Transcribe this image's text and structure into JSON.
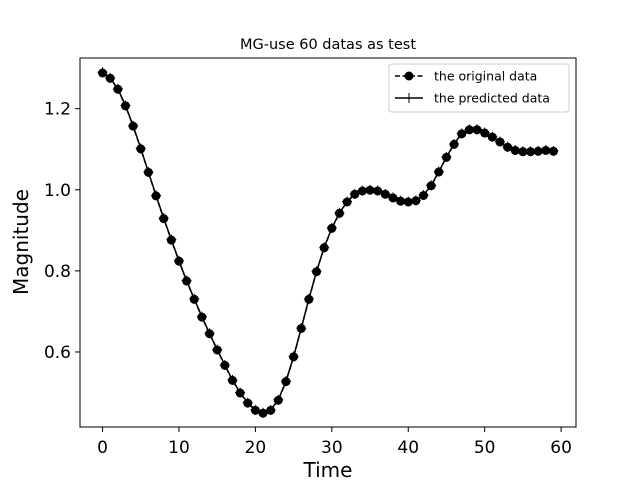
{
  "chart_data": {
    "type": "line",
    "title": "MG-use 60 datas as test",
    "xlabel": "Time",
    "ylabel": "Magnitude",
    "xlim": [
      -2.95,
      61.95
    ],
    "ylim": [
      0.415,
      1.325
    ],
    "xticks": [
      0,
      10,
      20,
      30,
      40,
      50,
      60
    ],
    "xtick_labels": [
      "0",
      "10",
      "20",
      "30",
      "40",
      "50",
      "60"
    ],
    "yticks": [
      0.6,
      0.8,
      1.0,
      1.2
    ],
    "ytick_labels": [
      "0.6",
      "0.8",
      "1.0",
      "1.2"
    ],
    "grid": false,
    "legend_position": "top-right",
    "x": [
      0,
      1,
      2,
      3,
      4,
      5,
      6,
      7,
      8,
      9,
      10,
      11,
      12,
      13,
      14,
      15,
      16,
      17,
      18,
      19,
      20,
      21,
      22,
      23,
      24,
      25,
      26,
      27,
      28,
      29,
      30,
      31,
      32,
      33,
      34,
      35,
      36,
      37,
      38,
      39,
      40,
      41,
      42,
      43,
      44,
      45,
      46,
      47,
      48,
      49,
      50,
      51,
      52,
      53,
      54,
      55,
      56,
      57,
      58,
      59
    ],
    "series": [
      {
        "name": "the original data",
        "style": "dashed-circle",
        "color": "#000000",
        "values": [
          1.288,
          1.275,
          1.248,
          1.207,
          1.157,
          1.101,
          1.043,
          0.985,
          0.929,
          0.876,
          0.824,
          0.775,
          0.73,
          0.686,
          0.645,
          0.605,
          0.567,
          0.53,
          0.499,
          0.474,
          0.456,
          0.449,
          0.456,
          0.481,
          0.527,
          0.588,
          0.658,
          0.73,
          0.798,
          0.857,
          0.905,
          0.942,
          0.97,
          0.989,
          0.997,
          0.999,
          0.997,
          0.989,
          0.98,
          0.972,
          0.97,
          0.973,
          0.986,
          1.01,
          1.044,
          1.08,
          1.112,
          1.138,
          1.148,
          1.148,
          1.14,
          1.13,
          1.118,
          1.105,
          1.097,
          1.094,
          1.094,
          1.095,
          1.097,
          1.095
        ]
      },
      {
        "name": "the predicted data",
        "style": "solid-plus",
        "color": "#000000",
        "values": [
          1.29,
          1.276,
          1.249,
          1.208,
          1.158,
          1.102,
          1.044,
          0.986,
          0.93,
          0.877,
          0.825,
          0.776,
          0.731,
          0.687,
          0.646,
          0.606,
          0.568,
          0.531,
          0.5,
          0.475,
          0.457,
          0.45,
          0.457,
          0.482,
          0.528,
          0.589,
          0.659,
          0.731,
          0.799,
          0.858,
          0.906,
          0.943,
          0.971,
          0.99,
          0.998,
          1.0,
          0.998,
          0.99,
          0.981,
          0.973,
          0.971,
          0.974,
          0.987,
          1.011,
          1.045,
          1.081,
          1.113,
          1.139,
          1.149,
          1.149,
          1.141,
          1.131,
          1.119,
          1.106,
          1.098,
          1.095,
          1.095,
          1.096,
          1.098,
          1.096
        ]
      }
    ]
  }
}
